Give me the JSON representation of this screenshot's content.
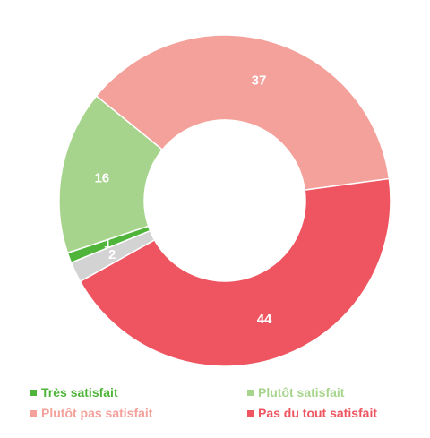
{
  "chart_data": {
    "type": "pie",
    "donut": true,
    "categories": [
      "Très satisfait",
      "Plutôt satisfait",
      "Plutôt pas satisfait",
      "Pas du tout satisfait",
      ""
    ],
    "values": [
      1,
      16,
      37,
      44,
      2
    ],
    "data_labels": [
      "1",
      "16",
      "37",
      "44",
      "2"
    ],
    "colors": [
      "#4fb53a",
      "#a6d48c",
      "#f4a19b",
      "#ee5560",
      "#d3d3d3"
    ],
    "title": "",
    "legend_position": "bottom"
  },
  "legend": [
    {
      "label": "Très satisfait",
      "color": "#4fb53a"
    },
    {
      "label": "Plutôt satisfait",
      "color": "#a6d48c"
    },
    {
      "label": "Plutôt pas satisfait",
      "color": "#f4a19b"
    },
    {
      "label": "Pas du tout satisfait",
      "color": "#ee5560"
    }
  ]
}
